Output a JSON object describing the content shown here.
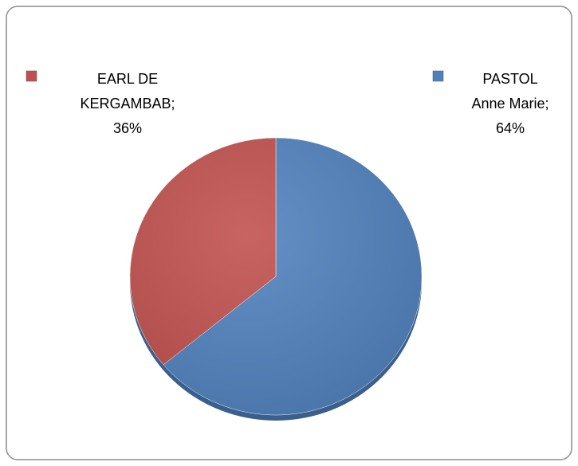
{
  "chart_data": {
    "type": "pie",
    "values": [
      64,
      36
    ],
    "value_labels": [
      "PASTOL Anne Marie; 64%",
      "EARL DE KERGAMBAB; 36%"
    ],
    "colors": [
      "#4f81bd",
      "#c0504d"
    ]
  }
}
